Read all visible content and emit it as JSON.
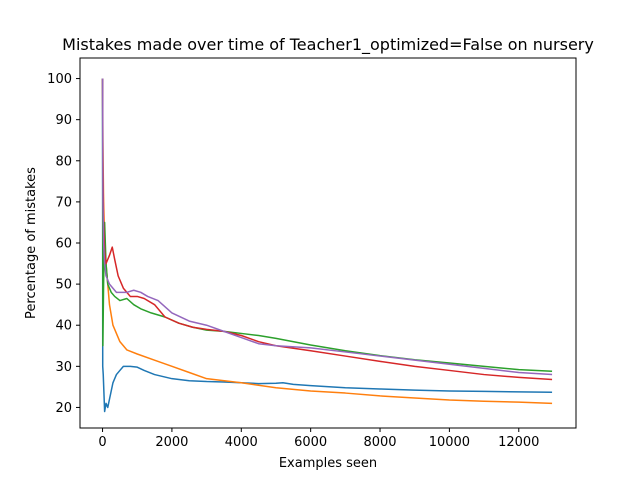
{
  "chart_data": {
    "type": "line",
    "title": "Mistakes made over time of Teacher1_optimized=False on nursery",
    "xlabel": "Examples seen",
    "ylabel": "Percentage of mistakes",
    "xlim": [
      -650,
      13650
    ],
    "ylim": [
      15,
      105
    ],
    "xticks": [
      0,
      2000,
      4000,
      6000,
      8000,
      10000,
      12000
    ],
    "xtick_labels": [
      "0",
      "2000",
      "4000",
      "6000",
      "8000",
      "10000",
      "12000"
    ],
    "yticks": [
      20,
      30,
      40,
      50,
      60,
      70,
      80,
      90,
      100
    ],
    "ytick_labels": [
      "20",
      "30",
      "40",
      "50",
      "60",
      "70",
      "80",
      "90",
      "100"
    ],
    "grid": false,
    "series": [
      {
        "color": "#1f77b4",
        "x": [
          1,
          5,
          20,
          60,
          100,
          150,
          200,
          300,
          400,
          500,
          600,
          800,
          1000,
          1200,
          1500,
          2000,
          2500,
          3000,
          3500,
          4000,
          4500,
          5000,
          5200,
          5500,
          6000,
          7000,
          8000,
          9000,
          10000,
          11000,
          12000,
          12960
        ],
        "y": [
          100,
          30,
          28,
          19,
          21,
          20,
          22,
          26,
          28,
          29,
          30,
          30,
          29.8,
          29,
          28,
          27,
          26.5,
          26.3,
          26.2,
          26,
          25.8,
          25.9,
          26,
          25.6,
          25.3,
          24.8,
          24.5,
          24.2,
          24,
          23.9,
          23.8,
          23.7
        ]
      },
      {
        "color": "#ff7f0e",
        "x": [
          1,
          10,
          30,
          60,
          100,
          150,
          200,
          300,
          500,
          700,
          1000,
          1500,
          2000,
          2500,
          3000,
          4000,
          5000,
          6000,
          7000,
          8000,
          9000,
          10000,
          11000,
          12000,
          12960
        ],
        "y": [
          100,
          85,
          70,
          60,
          55,
          50,
          45,
          40,
          36,
          34,
          33,
          31.5,
          30,
          28.5,
          27,
          26,
          24.8,
          24,
          23.5,
          22.8,
          22.3,
          21.8,
          21.5,
          21.3,
          21
        ]
      },
      {
        "color": "#2ca02c",
        "x": [
          1,
          10,
          30,
          60,
          100,
          150,
          250,
          350,
          500,
          700,
          900,
          1100,
          1400,
          1800,
          2200,
          2600,
          3000,
          3500,
          4000,
          4500,
          5000,
          6000,
          7000,
          8000,
          9000,
          10000,
          11000,
          12000,
          12960
        ],
        "y": [
          100,
          35,
          50,
          65,
          55,
          50,
          48,
          47,
          46,
          46.5,
          45,
          44,
          43,
          42,
          40.5,
          39.5,
          38.8,
          38.5,
          38,
          37.5,
          36.8,
          35.2,
          33.8,
          32.6,
          31.6,
          30.8,
          30,
          29.2,
          28.8
        ]
      },
      {
        "color": "#d62728",
        "x": [
          1,
          10,
          30,
          60,
          100,
          150,
          200,
          280,
          350,
          450,
          600,
          800,
          1000,
          1200,
          1500,
          1800,
          2200,
          2600,
          3000,
          3500,
          4000,
          4500,
          5000,
          6000,
          7000,
          8000,
          9000,
          10000,
          11000,
          12000,
          12960
        ],
        "y": [
          100,
          80,
          65,
          58,
          55,
          56,
          57,
          59,
          56,
          52,
          49,
          47,
          47,
          46.5,
          45,
          42,
          40.5,
          39.5,
          39,
          38.5,
          37.5,
          36,
          35,
          33.8,
          32.5,
          31.2,
          30,
          29,
          28,
          27.3,
          26.8
        ]
      },
      {
        "color": "#9467bd",
        "x": [
          1,
          10,
          30,
          60,
          100,
          150,
          200,
          300,
          400,
          500,
          700,
          900,
          1100,
          1300,
          1600,
          2000,
          2500,
          3000,
          3500,
          4000,
          4500,
          5000,
          6000,
          7000,
          8000,
          9000,
          10000,
          11000,
          12000,
          12960
        ],
        "y": [
          100,
          70,
          60,
          55,
          52,
          51,
          50,
          49,
          48,
          48,
          48,
          48.5,
          48,
          47,
          46,
          43,
          41,
          40,
          38.5,
          37,
          35.5,
          35,
          34.5,
          33.5,
          32.5,
          31.5,
          30.5,
          29.5,
          28.5,
          28
        ]
      }
    ]
  }
}
